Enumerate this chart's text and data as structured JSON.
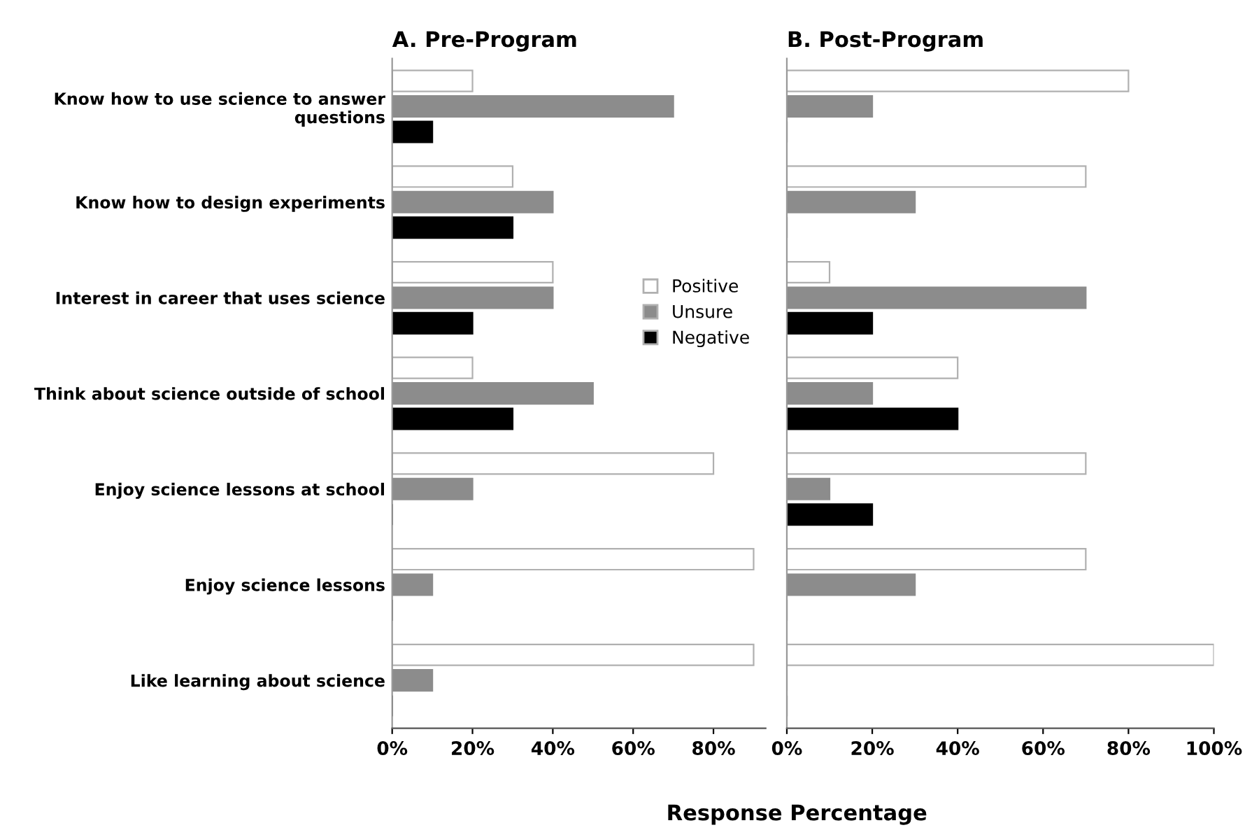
{
  "chart_data": [
    {
      "type": "bar",
      "orientation": "horizontal",
      "title": "A. Pre-Program",
      "categories": [
        "Know how to use science to answer questions",
        "Know how to design experiments",
        "Interest in career that uses science",
        "Think about science outside of school",
        "Enjoy science lessons at school",
        "Enjoy science lessons",
        "Like learning about science"
      ],
      "series": [
        {
          "name": "Positive",
          "color": "#ffffff",
          "values": [
            20,
            30,
            40,
            20,
            80,
            90,
            90
          ]
        },
        {
          "name": "Unsure",
          "color": "#8c8c8c",
          "values": [
            70,
            40,
            40,
            50,
            20,
            10,
            10
          ]
        },
        {
          "name": "Negative",
          "color": "#000000",
          "values": [
            10,
            30,
            20,
            30,
            0,
            0,
            0
          ]
        }
      ],
      "xlim": [
        0,
        93
      ],
      "xticks": [
        {
          "value": 0,
          "label": "0%"
        },
        {
          "value": 20,
          "label": "20%"
        },
        {
          "value": 40,
          "label": "40%"
        },
        {
          "value": 60,
          "label": "60%"
        },
        {
          "value": 80,
          "label": "80%"
        }
      ],
      "legend": "right",
      "grid": false
    },
    {
      "type": "bar",
      "orientation": "horizontal",
      "title": "B. Post-Program",
      "xlabel": "Response Percentage",
      "categories": [
        null,
        null,
        null,
        null,
        null,
        null,
        null
      ],
      "series": [
        {
          "color": "#ffffff",
          "values": [
            80,
            70,
            10,
            40,
            70,
            70,
            100
          ]
        },
        {
          "color": "#8c8c8c",
          "values": [
            20,
            30,
            70,
            20,
            10,
            30,
            0
          ]
        },
        {
          "color": "#000000",
          "values": [
            0,
            0,
            20,
            40,
            20,
            0,
            0
          ]
        }
      ],
      "xlim": [
        0,
        100
      ],
      "xticks": [
        {
          "value": 0,
          "label": "0%"
        },
        {
          "value": 20,
          "label": "20%"
        },
        {
          "value": 40,
          "label": "40%"
        },
        {
          "value": 60,
          "label": "60%"
        },
        {
          "value": 80,
          "label": "80%"
        },
        {
          "value": 100,
          "label": "100%"
        }
      ],
      "tick_labels": "x",
      "grid": false
    }
  ]
}
